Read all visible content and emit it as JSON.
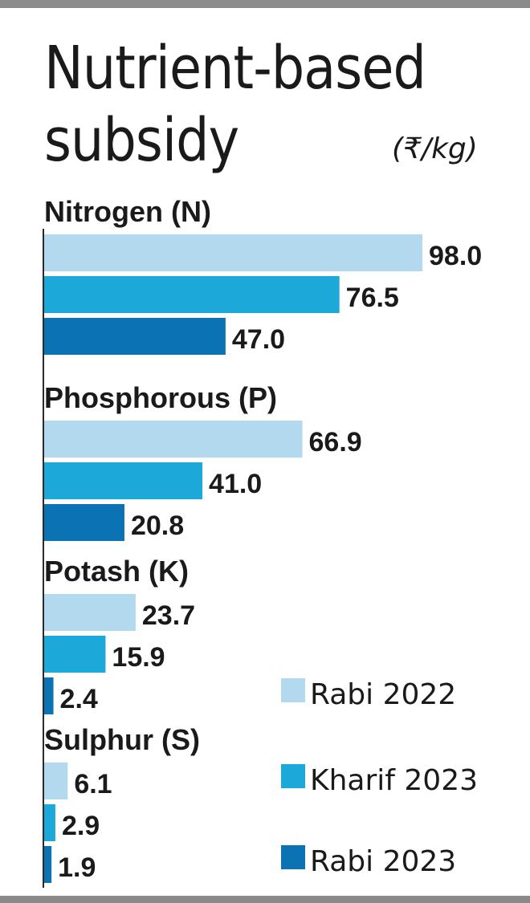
{
  "chart_data": {
    "type": "bar",
    "orientation": "horizontal",
    "title_line1": "Nutrient-based",
    "title_line2": "subsidy",
    "unit": "(₹/kg)",
    "categories": [
      "Nitrogen (N)",
      "Phosphorous (P)",
      "Potash (K)",
      "Sulphur (S)"
    ],
    "series": [
      {
        "name": "Rabi 2022",
        "color": "#b3d9ef",
        "values": [
          98.0,
          66.9,
          23.7,
          6.1
        ],
        "labels": [
          "98.0",
          "66.9",
          "23.7",
          "6.1"
        ]
      },
      {
        "name": "Kharif 2023",
        "color": "#1ca9d9",
        "values": [
          76.5,
          41.0,
          15.9,
          2.9
        ],
        "labels": [
          "76.5",
          "41.0",
          "15.9",
          "2.9"
        ]
      },
      {
        "name": "Rabi 2023",
        "color": "#0b72b3",
        "values": [
          47.0,
          20.8,
          2.4,
          1.9
        ],
        "labels": [
          "47.0",
          "20.8",
          "2.4",
          "1.9"
        ]
      }
    ],
    "xlim": [
      0,
      98
    ],
    "legend_position": "bottom-right",
    "grid": false
  }
}
